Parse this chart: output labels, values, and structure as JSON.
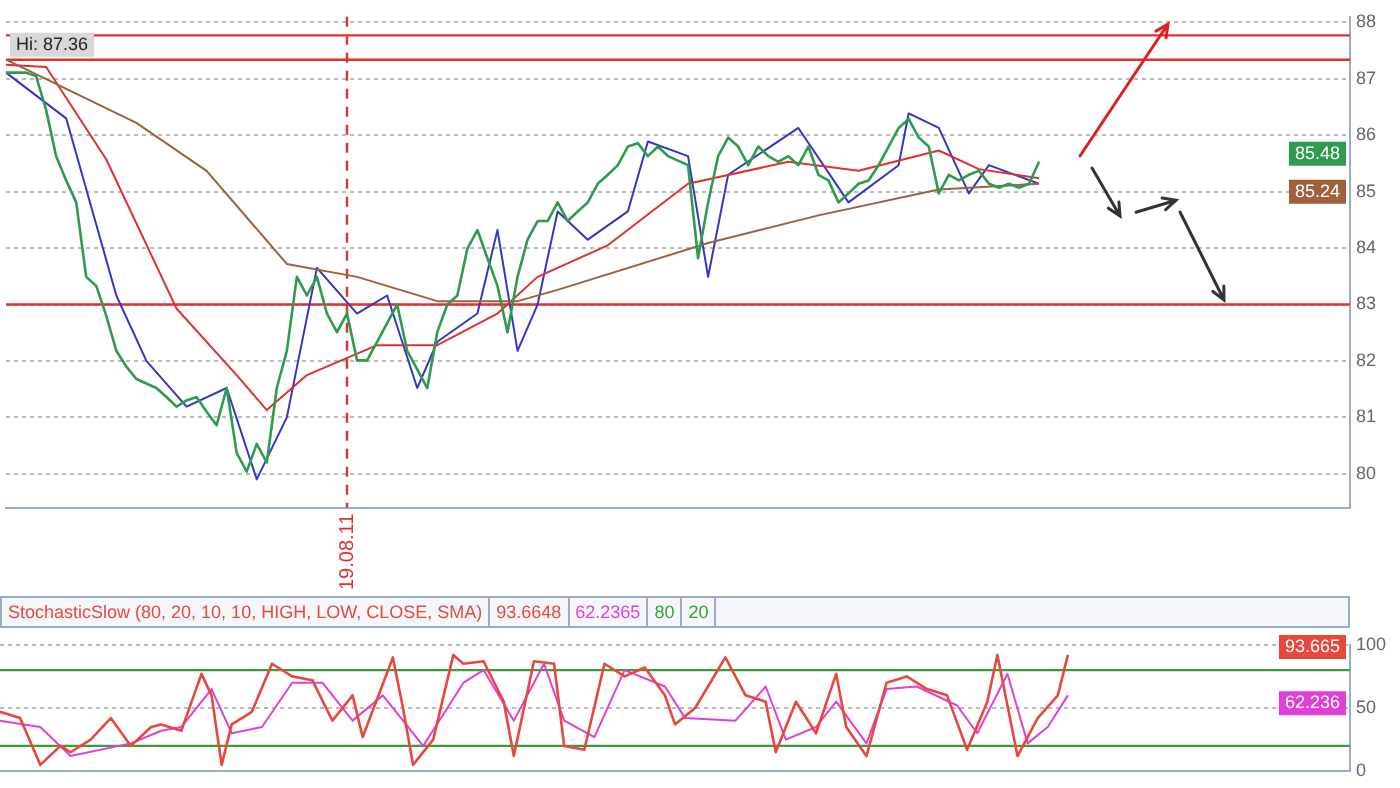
{
  "chart_data": [
    {
      "type": "line",
      "categories": [
        null,
        null,
        null,
        null,
        null,
        null,
        null,
        null,
        null,
        null,
        null,
        null,
        null,
        null,
        null,
        null,
        null,
        null,
        null,
        null,
        null,
        null,
        null,
        null,
        null,
        null,
        null,
        null,
        null,
        null,
        null,
        null,
        null,
        null,
        "19.08.11",
        null,
        null,
        null,
        null,
        null,
        null,
        null,
        null,
        null,
        null,
        null,
        null,
        null,
        null,
        null,
        null,
        null,
        null,
        null,
        null,
        null,
        null,
        null,
        null,
        null,
        null,
        null,
        null,
        null,
        null,
        null,
        null,
        null,
        null,
        null,
        null,
        null,
        null,
        null,
        null,
        null,
        null,
        null,
        null,
        null,
        null,
        null,
        null,
        null,
        null,
        null,
        null,
        null,
        null,
        null,
        null,
        null,
        null,
        null,
        null,
        null,
        null,
        null,
        null,
        null,
        null,
        null,
        null,
        null,
        null,
        null,
        null,
        null,
        null,
        null,
        null,
        null,
        null,
        null,
        null,
        null,
        null,
        null,
        null,
        null,
        null,
        null,
        null,
        null,
        null,
        null,
        null,
        null,
        null,
        null,
        null,
        null,
        null,
        null,
        null
      ],
      "ylim": [
        79.4,
        88.1
      ],
      "yticks": [
        80,
        81,
        82,
        83,
        84,
        85,
        86,
        87,
        88
      ],
      "grid": "y",
      "legend": false,
      "marker": "none",
      "series": [
        {
          "color": "#2e9b4e",
          "values": [
            87.11,
            87.11,
            87.11,
            87.05,
            86.45,
            85.63,
            85.2,
            84.81,
            83.49,
            83.33,
            82.8,
            82.18,
            81.9,
            81.68,
            81.6,
            81.52,
            81.36,
            81.19,
            81.3,
            81.36,
            81.1,
            80.86,
            81.52,
            80.37,
            80.04,
            80.53,
            80.2,
            81.52,
            82.18,
            83.49,
            83.16,
            83.49,
            82.84,
            82.51,
            82.84,
            82.01,
            82.01,
            82.34,
            82.67,
            83.0,
            82.18,
            81.85,
            81.52,
            82.51,
            83.0,
            83.16,
            83.99,
            84.32,
            83.82,
            83.33,
            82.51,
            83.49,
            84.15,
            84.48,
            84.48,
            84.81,
            84.48,
            84.65,
            84.81,
            85.14,
            85.3,
            85.47,
            85.8,
            85.86,
            85.63,
            85.8,
            85.63,
            85.55,
            85.47,
            83.82,
            84.81,
            85.63,
            85.96,
            85.8,
            85.47,
            85.8,
            85.63,
            85.53,
            85.63,
            85.47,
            85.8,
            85.3,
            85.2,
            84.81,
            84.97,
            85.14,
            85.2,
            85.47,
            85.8,
            86.13,
            86.29,
            85.96,
            85.8,
            84.97,
            85.3,
            85.2,
            85.3,
            85.37,
            85.14,
            85.07,
            85.14,
            85.07,
            85.14,
            85.53,
            null,
            null,
            null,
            null,
            null,
            null,
            null,
            null,
            null,
            null,
            null,
            null,
            null,
            null,
            null,
            null,
            null,
            null,
            null,
            null,
            null,
            null,
            null,
            null,
            null,
            null,
            null,
            null,
            null,
            null,
            null
          ]
        },
        {
          "color": "#a0603c",
          "values": [
            87.34,
            null,
            null,
            null,
            null,
            null,
            null,
            null,
            null,
            null,
            null,
            null,
            null,
            86.22,
            null,
            null,
            null,
            null,
            null,
            null,
            85.37,
            null,
            null,
            null,
            null,
            null,
            null,
            null,
            83.72,
            null,
            null,
            null,
            null,
            null,
            null,
            83.49,
            null,
            null,
            null,
            null,
            null,
            null,
            null,
            83.06,
            null,
            null,
            null,
            null,
            null,
            null,
            null,
            83.06,
            null,
            null,
            null,
            83.26,
            null,
            null,
            null,
            null,
            null,
            null,
            null,
            null,
            null,
            null,
            null,
            null,
            null,
            null,
            84.09,
            null,
            null,
            null,
            null,
            null,
            null,
            null,
            null,
            null,
            null,
            84.58,
            null,
            null,
            null,
            null,
            null,
            null,
            null,
            null,
            null,
            null,
            null,
            85.04,
            null,
            null,
            null,
            null,
            null,
            null,
            null,
            null,
            null,
            85.14,
            null,
            null,
            null,
            null,
            null,
            null,
            null,
            null,
            null,
            null,
            null,
            null,
            null,
            null,
            null,
            null,
            null,
            null,
            null,
            null,
            null,
            null,
            null,
            null,
            null,
            null,
            null,
            null,
            null,
            null,
            null
          ]
        },
        {
          "color": "#e03030",
          "values": [
            87.25,
            null,
            null,
            null,
            87.21,
            null,
            null,
            null,
            null,
            null,
            85.57,
            null,
            null,
            null,
            null,
            null,
            null,
            82.93,
            null,
            null,
            null,
            null,
            null,
            81.75,
            null,
            null,
            81.13,
            null,
            null,
            null,
            81.75,
            null,
            null,
            null,
            null,
            null,
            null,
            82.28,
            null,
            null,
            null,
            null,
            null,
            82.28,
            null,
            null,
            null,
            null,
            null,
            82.84,
            null,
            null,
            null,
            83.49,
            null,
            null,
            null,
            null,
            null,
            null,
            84.05,
            null,
            null,
            null,
            null,
            null,
            null,
            null,
            85.14,
            null,
            null,
            null,
            null,
            null,
            null,
            null,
            null,
            null,
            85.53,
            null,
            null,
            null,
            null,
            null,
            null,
            85.37,
            null,
            null,
            null,
            null,
            null,
            null,
            null,
            85.73,
            null,
            null,
            null,
            85.4,
            null,
            null,
            null,
            null,
            null,
            85.24,
            null,
            null,
            null,
            null,
            null,
            null,
            null,
            null,
            null,
            null,
            null,
            null,
            null,
            null,
            null,
            null,
            null,
            null,
            null,
            null,
            null,
            null,
            null,
            null,
            null,
            null,
            null,
            null,
            null,
            null,
            null
          ]
        },
        {
          "color": "#3535c8",
          "values": [
            87.11,
            null,
            null,
            null,
            null,
            null,
            86.3,
            null,
            null,
            null,
            null,
            83.16,
            null,
            null,
            82.0,
            null,
            null,
            null,
            81.19,
            null,
            null,
            null,
            81.52,
            null,
            null,
            79.9,
            null,
            null,
            81.0,
            null,
            null,
            83.65,
            null,
            null,
            null,
            82.84,
            null,
            null,
            83.16,
            null,
            null,
            81.52,
            null,
            82.34,
            null,
            null,
            null,
            82.84,
            null,
            84.32,
            null,
            82.18,
            null,
            83.0,
            null,
            84.65,
            null,
            null,
            84.15,
            null,
            null,
            null,
            84.65,
            null,
            85.89,
            null,
            null,
            null,
            85.63,
            null,
            83.49,
            null,
            85.3,
            null,
            null,
            null,
            null,
            null,
            null,
            86.13,
            null,
            null,
            null,
            null,
            84.81,
            null,
            null,
            null,
            null,
            85.47,
            86.39,
            null,
            null,
            86.13,
            null,
            null,
            84.97,
            null,
            85.47,
            null,
            null,
            null,
            null,
            85.14,
            null,
            null,
            null,
            null,
            null,
            null,
            null,
            null,
            null,
            null,
            null,
            null,
            null,
            null,
            null,
            null,
            null,
            null,
            null,
            null,
            null,
            null,
            null,
            null,
            null,
            null,
            null,
            null,
            null,
            null,
            null
          ]
        }
      ],
      "ref_lines": [
        {
          "axis": "y",
          "value": 87.77,
          "color": "#e03030"
        },
        {
          "axis": "y",
          "value": 87.34,
          "color": "#e03030"
        },
        {
          "axis": "y",
          "value": 83,
          "color": "#e03030"
        },
        {
          "axis": "x",
          "value": "19.08.11",
          "color": "#e03030",
          "line_style": "dashed"
        }
      ],
      "annotations": [
        "Hi: 87.36",
        "85.48",
        "85.24"
      ]
    },
    {
      "type": "line",
      "title": "StochasticSlow (80, 20, 10, 10, HIGH, LOW, CLOSE, SMA)",
      "categories": [
        null,
        null,
        null,
        null,
        null,
        null,
        null,
        null,
        null,
        null,
        null,
        null,
        null,
        null,
        null,
        null,
        null,
        null,
        null,
        null,
        null,
        null,
        null,
        null,
        null,
        null,
        null,
        null,
        null,
        null,
        null,
        null,
        null,
        null,
        null,
        null,
        null,
        null,
        null,
        null,
        null,
        null,
        null,
        null,
        null,
        null,
        null,
        null,
        null,
        null,
        null,
        null,
        null,
        null,
        null,
        null,
        null,
        null,
        null,
        null,
        null,
        null,
        null,
        null,
        null,
        null,
        null,
        null,
        null,
        null,
        null,
        null,
        null,
        null,
        null,
        null,
        null,
        null,
        null,
        null,
        null,
        null,
        null,
        null,
        null,
        null,
        null,
        null,
        null,
        null,
        null,
        null,
        null,
        null,
        null,
        null,
        null,
        null,
        null,
        null,
        null,
        null,
        null,
        null,
        null,
        null,
        null,
        null,
        null,
        null,
        null,
        null,
        null,
        null,
        null,
        null,
        null,
        null,
        null,
        null,
        null,
        null,
        null,
        null,
        null,
        null,
        null,
        null,
        null,
        null,
        null,
        null,
        null,
        null,
        null
      ],
      "ylim": [
        0,
        100
      ],
      "yticks": [
        0,
        50,
        100
      ],
      "tick_labels": "y",
      "grid": "y",
      "legend": false,
      "marker": "none",
      "series": [
        {
          "color": "#e8483c",
          "values": [
            47,
            null,
            42,
            null,
            5,
            null,
            20,
            15,
            null,
            25,
            null,
            42,
            null,
            20,
            null,
            35,
            37,
            null,
            32,
            null,
            77,
            60,
            5,
            37,
            null,
            47,
            null,
            85,
            null,
            75,
            null,
            72,
            null,
            40,
            null,
            60,
            27,
            null,
            null,
            90,
            50,
            5,
            null,
            25,
            null,
            92,
            85,
            null,
            87,
            null,
            55,
            12,
            null,
            87,
            null,
            85,
            20,
            null,
            17,
            null,
            85,
            null,
            75,
            null,
            82,
            null,
            60,
            37,
            null,
            50,
            null,
            null,
            90,
            null,
            60,
            null,
            55,
            15,
            null,
            55,
            null,
            30,
            null,
            77,
            35,
            null,
            12,
            null,
            70,
            null,
            75,
            null,
            65,
            null,
            60,
            null,
            17,
            null,
            55,
            92,
            null,
            12,
            null,
            42,
            null,
            60,
            92,
            null,
            null,
            null,
            null,
            null,
            null,
            null,
            null,
            null,
            null,
            null,
            null,
            null,
            null,
            null,
            null,
            null,
            null,
            null,
            null,
            null,
            null,
            null,
            null,
            null,
            null,
            null,
            null
          ]
        },
        {
          "color": "#e040d8",
          "values": [
            40,
            null,
            null,
            null,
            35,
            null,
            null,
            12,
            null,
            null,
            null,
            null,
            null,
            22,
            null,
            null,
            32,
            null,
            35,
            null,
            null,
            65,
            null,
            30,
            null,
            null,
            35,
            null,
            null,
            70,
            null,
            null,
            70,
            null,
            null,
            40,
            null,
            null,
            60,
            null,
            null,
            null,
            20,
            null,
            null,
            null,
            70,
            null,
            80,
            null,
            null,
            40,
            null,
            null,
            85,
            null,
            40,
            null,
            null,
            27,
            null,
            null,
            80,
            null,
            null,
            null,
            67,
            null,
            42,
            null,
            null,
            null,
            null,
            40,
            null,
            null,
            67,
            null,
            25,
            null,
            null,
            35,
            null,
            55,
            null,
            null,
            22,
            null,
            65,
            null,
            null,
            67,
            null,
            null,
            null,
            52,
            null,
            30,
            null,
            null,
            77,
            null,
            22,
            null,
            35,
            null,
            60,
            null,
            null,
            null,
            null,
            null,
            null,
            null,
            null,
            null,
            null,
            null,
            null,
            null,
            null,
            null,
            null,
            null,
            null,
            null,
            null,
            null,
            null,
            null,
            null,
            null,
            null,
            null,
            null
          ]
        }
      ],
      "ref_lines": [
        {
          "axis": "y",
          "value": 80,
          "label": "80",
          "color": "#3c9c3c"
        },
        {
          "axis": "y",
          "value": 20,
          "label": "20",
          "color": "#3c9c3c"
        }
      ],
      "annotations": [
        "93.6648",
        "62.2365",
        "93.665",
        "62.236"
      ]
    }
  ]
}
